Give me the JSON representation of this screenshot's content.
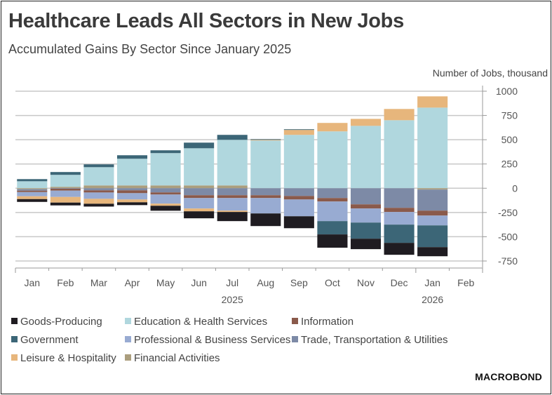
{
  "header": {
    "title": "Healthcare Leads All Sectors in New Jobs",
    "subtitle": "Accumulated Gains By Sector Since January 2025",
    "unit_label": "Number of Jobs, thousand"
  },
  "brand": {
    "logo_text": "MACROBOND"
  },
  "chart_data": {
    "type": "bar",
    "stacked": true,
    "title": "Healthcare Leads All Sectors in New Jobs",
    "subtitle": "Accumulated Gains By Sector Since January 2025",
    "xlabel": "",
    "ylabel": "Number of Jobs, thousand",
    "ylim": [
      -750,
      1000
    ],
    "yticks": [
      1000,
      750,
      500,
      250,
      0,
      -250,
      -500,
      -750
    ],
    "ytick_labels": [
      "1000",
      "750",
      "500",
      "250",
      "0",
      "-250",
      "-500",
      "-750"
    ],
    "y_axis_side": "right",
    "grid": true,
    "legend_position": "bottom",
    "categories": [
      "Jan",
      "Feb",
      "Mar",
      "Apr",
      "May",
      "Jun",
      "Jul",
      "Aug",
      "Sep",
      "Oct",
      "Nov",
      "Dec",
      "Jan",
      "Feb"
    ],
    "year_labels": [
      {
        "label": "2025",
        "under_category_index": 6
      },
      {
        "label": "2026",
        "under_category_index": 12
      }
    ],
    "series": [
      {
        "name": "Goods-Producing",
        "color": "#1f1c21",
        "values": [
          -29,
          -29,
          -29,
          -29,
          -51,
          -72,
          -94,
          -130,
          -123,
          -137,
          -108,
          -123,
          -94,
          null
        ]
      },
      {
        "name": "Education & Health Services",
        "color": "#b0d7de",
        "values": [
          72,
          123,
          188,
          275,
          333,
          383,
          470,
          492,
          550,
          586,
          643,
          701,
          831,
          null
        ]
      },
      {
        "name": "Information",
        "color": "#8a5a4b",
        "values": [
          -15,
          -20,
          -22,
          -29,
          -22,
          -29,
          -29,
          -29,
          -36,
          -36,
          -43,
          -43,
          -51,
          null
        ]
      },
      {
        "name": "Government",
        "color": "#3c6677",
        "values": [
          22,
          29,
          29,
          36,
          29,
          58,
          51,
          7,
          7,
          -137,
          -166,
          -188,
          -224,
          null
        ]
      },
      {
        "name": "Professional & Business Services",
        "color": "#98abd2",
        "values": [
          -43,
          -65,
          -65,
          -65,
          -94,
          -108,
          -130,
          -159,
          -173,
          -202,
          -145,
          -130,
          -101,
          null
        ]
      },
      {
        "name": "Trade, Transportation & Utilities",
        "color": "#7d8aa6",
        "values": [
          -15,
          -5,
          -22,
          -22,
          -43,
          -72,
          -72,
          -72,
          -80,
          -101,
          -166,
          -202,
          -217,
          null
        ]
      },
      {
        "name": "Leisure & Hospitality",
        "color": "#e7b67c",
        "values": [
          -29,
          -58,
          -51,
          -29,
          -22,
          -29,
          -14,
          7,
          51,
          87,
          72,
          116,
          116,
          null
        ]
      },
      {
        "name": "Financial Activities",
        "color": "#ab9e7e",
        "values": [
          -10,
          15,
          29,
          29,
          29,
          29,
          29,
          0,
          0,
          0,
          0,
          0,
          -14,
          null
        ]
      }
    ]
  },
  "legend": {
    "items": [
      {
        "label": "Goods-Producing",
        "color": "#1f1c21"
      },
      {
        "label": "Education & Health Services",
        "color": "#b0d7de"
      },
      {
        "label": "Information",
        "color": "#8a5a4b"
      },
      {
        "label": "Government",
        "color": "#3c6677"
      },
      {
        "label": "Professional & Business Services",
        "color": "#98abd2"
      },
      {
        "label": "Trade, Transportation & Utilities",
        "color": "#7d8aa6"
      },
      {
        "label": "Leisure & Hospitality",
        "color": "#e7b67c"
      },
      {
        "label": "Financial Activities",
        "color": "#ab9e7e"
      }
    ]
  }
}
